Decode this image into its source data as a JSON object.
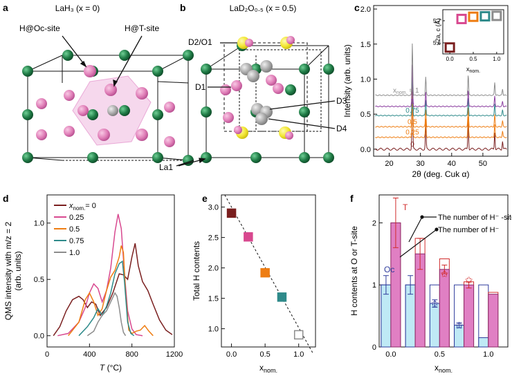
{
  "panels": {
    "a": {
      "letter": "a",
      "title": "LaH₃ (x = 0)",
      "labels": {
        "oc": "H@Oc-site",
        "t": "H@T-site",
        "la": "La1"
      }
    },
    "b": {
      "letter": "b",
      "title": "LaD₂O₀.₅ (x = 0.5)",
      "labels": {
        "d2o1": "D2/O1",
        "d1": "D1",
        "d3": "D3",
        "d4": "D4"
      }
    },
    "c": {
      "letter": "c"
    },
    "d": {
      "letter": "d"
    },
    "e": {
      "letter": "e"
    },
    "f": {
      "letter": "f"
    }
  },
  "colors": {
    "x0": "#7a1f1f",
    "x025": "#d8488f",
    "x05": "#ee7d12",
    "x075": "#2e8a8a",
    "x1": "#8c8c8c",
    "la": "#1f7a45",
    "h": "#e07fb8",
    "o": "#f2e633",
    "d": "#a8a8a8",
    "oc_edge": "#2e3b9c",
    "t_edge": "#d12b2b",
    "oc_fill": "#bfe9f5",
    "t_fill": "#e07fc3"
  },
  "chart_data": [
    {
      "id": "c",
      "type": "line",
      "xlabel": "2θ (deg. Cuk α)",
      "ylabel": "Intensity (arb. units)",
      "xlim": [
        15,
        58
      ],
      "ylim": [
        -0.1,
        2.05
      ],
      "xticks": [
        20,
        30,
        40,
        50
      ],
      "yticks": [
        "0.0",
        "0.5",
        "1.0",
        "1.5",
        "2.0"
      ],
      "series": [
        {
          "name": "0",
          "offset": 0.0,
          "color": "#7a1f1f"
        },
        {
          "name": "0.25",
          "offset": 0.17,
          "color": "#ee7d12"
        },
        {
          "name": "0.5",
          "offset": 0.32,
          "color": "#ee7d12"
        },
        {
          "name": "0.75",
          "offset": 0.48,
          "color": "#2e8a8a"
        },
        {
          "name": "1",
          "offset": 0.61,
          "color": "#8c3fa0"
        },
        {
          "name": "1",
          "offset": 0.77,
          "color": "#8c8c8c"
        }
      ],
      "series_label_prefix": "x",
      "series_label_sub": "nom.",
      "series_label_eq": "= 1",
      "peaks": [
        {
          "pos": 27.4,
          "h": 1.0
        },
        {
          "pos": 31.7,
          "h": 0.35
        },
        {
          "pos": 45.3,
          "h": 0.4
        },
        {
          "pos": 53.8,
          "h": 0.25
        },
        {
          "pos": 56.3,
          "h": 0.12
        }
      ],
      "inset": {
        "ylabel": "√2a, c (Å)",
        "xlabel": "xnom.",
        "xlim": [
          -0.15,
          1.15
        ],
        "ylim": [
          5.55,
          5.75
        ],
        "xticks": [
          "0.0",
          "0.5",
          "1.0"
        ],
        "yticks": [
          "5.6",
          "5.7"
        ],
        "points": [
          {
            "x": 0.0,
            "y": 5.579,
            "color": "#7a1f1f"
          },
          {
            "x": 0.25,
            "y": 5.708,
            "color": "#d8488f"
          },
          {
            "x": 0.5,
            "y": 5.718,
            "color": "#ee7d12"
          },
          {
            "x": 0.75,
            "y": 5.72,
            "color": "#2e8a8a"
          },
          {
            "x": 1.0,
            "y": 5.722,
            "color": "#8c8c8c"
          }
        ]
      }
    },
    {
      "id": "d",
      "type": "line",
      "xlabel": "T (°C)",
      "ylabel": "QMS intensity with m/z = 2 (arb. units)",
      "ylabel_line1": "QMS intensity with m/z = 2",
      "ylabel_line2": "(arb. units)",
      "xlim": [
        0,
        1200
      ],
      "ylim": [
        -0.1,
        1.25
      ],
      "xticks": [
        "0",
        "400",
        "800",
        "1200"
      ],
      "yticks": [
        "0.0",
        "0.5",
        "1.0"
      ],
      "legend_prefix": "xnom.",
      "series": [
        {
          "name": "xnom. = 0",
          "label": "= 0",
          "color": "#7a1f1f",
          "x": [
            60,
            120,
            180,
            240,
            300,
            340,
            380,
            420,
            460,
            500,
            560,
            620,
            680,
            720,
            760,
            800,
            830,
            860,
            900,
            950,
            1000,
            1060,
            1120,
            1180
          ],
          "y": [
            0.0,
            0.08,
            0.22,
            0.32,
            0.35,
            0.32,
            0.25,
            0.3,
            0.28,
            0.18,
            0.25,
            0.38,
            0.55,
            0.54,
            0.5,
            0.7,
            0.82,
            0.62,
            0.48,
            0.4,
            0.28,
            0.14,
            0.05,
            0.01
          ]
        },
        {
          "name": "0.25",
          "label": "0.25",
          "color": "#d8488f",
          "x": [
            100,
            200,
            300,
            360,
            400,
            440,
            480,
            520,
            560,
            600,
            640,
            670,
            700,
            730,
            760,
            800,
            840,
            900
          ],
          "y": [
            0.0,
            0.02,
            0.12,
            0.25,
            0.38,
            0.46,
            0.42,
            0.3,
            0.4,
            0.6,
            0.92,
            1.08,
            0.95,
            0.55,
            0.22,
            0.06,
            0.01,
            0.0
          ]
        },
        {
          "name": "0.5",
          "label": "0.5",
          "color": "#ee7d12",
          "x": [
            200,
            300,
            360,
            400,
            440,
            480,
            520,
            560,
            600,
            640,
            680,
            700,
            720,
            740,
            770,
            800,
            840,
            880,
            920,
            960,
            1000
          ],
          "y": [
            0.0,
            0.12,
            0.32,
            0.38,
            0.3,
            0.18,
            0.24,
            0.4,
            0.52,
            0.58,
            0.7,
            0.8,
            0.74,
            0.38,
            0.05,
            0.02,
            0.04,
            0.05,
            0.09,
            0.04,
            0.0
          ]
        },
        {
          "name": "0.75",
          "label": "0.75",
          "color": "#2e8a8a",
          "x": [
            300,
            380,
            440,
            480,
            520,
            560,
            600,
            640,
            680,
            710,
            730,
            760,
            790,
            820
          ],
          "y": [
            0.0,
            0.08,
            0.16,
            0.24,
            0.18,
            0.26,
            0.38,
            0.55,
            0.64,
            0.66,
            0.48,
            0.12,
            0.02,
            0.0
          ]
        },
        {
          "name": "1.0",
          "label": "1.0",
          "color": "#8c8c8c",
          "x": [
            380,
            440,
            480,
            520,
            560,
            600,
            640,
            660,
            680,
            700,
            720,
            740
          ],
          "y": [
            0.0,
            0.04,
            0.12,
            0.18,
            0.22,
            0.3,
            0.38,
            0.35,
            0.25,
            0.12,
            0.03,
            0.0
          ]
        }
      ]
    },
    {
      "id": "e",
      "type": "scatter",
      "xlabel": "xnom.",
      "ylabel": "Total H contents",
      "xlim": [
        -0.15,
        1.25
      ],
      "ylim": [
        0.7,
        3.2
      ],
      "xticks": [
        "0.0",
        "0.5",
        "1.0"
      ],
      "yticks": [
        "1.0",
        "1.5",
        "2.0",
        "2.5",
        "3.0"
      ],
      "points": [
        {
          "x": 0.0,
          "y": 2.9,
          "color": "#7a1f1f"
        },
        {
          "x": 0.25,
          "y": 2.51,
          "color": "#d8488f"
        },
        {
          "x": 0.5,
          "y": 1.92,
          "color": "#ee7d12"
        },
        {
          "x": 0.75,
          "y": 1.52,
          "color": "#2e8a8a"
        },
        {
          "x": 1.0,
          "y": 0.9,
          "color": "#8c8c8c",
          "hollow": true
        }
      ],
      "fit": {
        "x": [
          -0.1,
          1.22
        ],
        "y": [
          3.2,
          0.58
        ]
      }
    },
    {
      "id": "f",
      "type": "bar",
      "xlabel": "xnom.",
      "ylabel": "H contents at O or T-site",
      "xlim": [
        -0.12,
        1.2
      ],
      "ylim": [
        0,
        2.45
      ],
      "xticks": [
        "0.0",
        "0.5",
        "1.0"
      ],
      "yticks": [
        "0",
        "1",
        "2"
      ],
      "categories": [
        "0.0",
        "0.25",
        "0.5",
        "0.75",
        "1.0"
      ],
      "series": [
        {
          "name": "Oc",
          "open": [
            1.0,
            1.0,
            1.0,
            1.0,
            1.0
          ],
          "filled": [
            1.0,
            1.0,
            0.7,
            0.35,
            0.15
          ],
          "err": [
            0.15,
            0.15,
            0.06,
            0.04,
            0.0
          ],
          "star": [
            null,
            null,
            0.7,
            0.35,
            null
          ]
        },
        {
          "name": "T",
          "open": [
            2.0,
            1.75,
            1.42,
            1.05,
            0.88
          ],
          "filled": [
            2.0,
            1.5,
            1.25,
            1.0,
            0.85
          ],
          "err": [
            0.4,
            0.25,
            0.07,
            0.05,
            0.0
          ],
          "star": [
            null,
            null,
            1.18,
            1.08,
            null
          ]
        }
      ],
      "labels": {
        "oc": "Oc",
        "t": "T",
        "ann1": "The number of H⁻ -site",
        "ann2": "The number of H⁻"
      }
    }
  ]
}
